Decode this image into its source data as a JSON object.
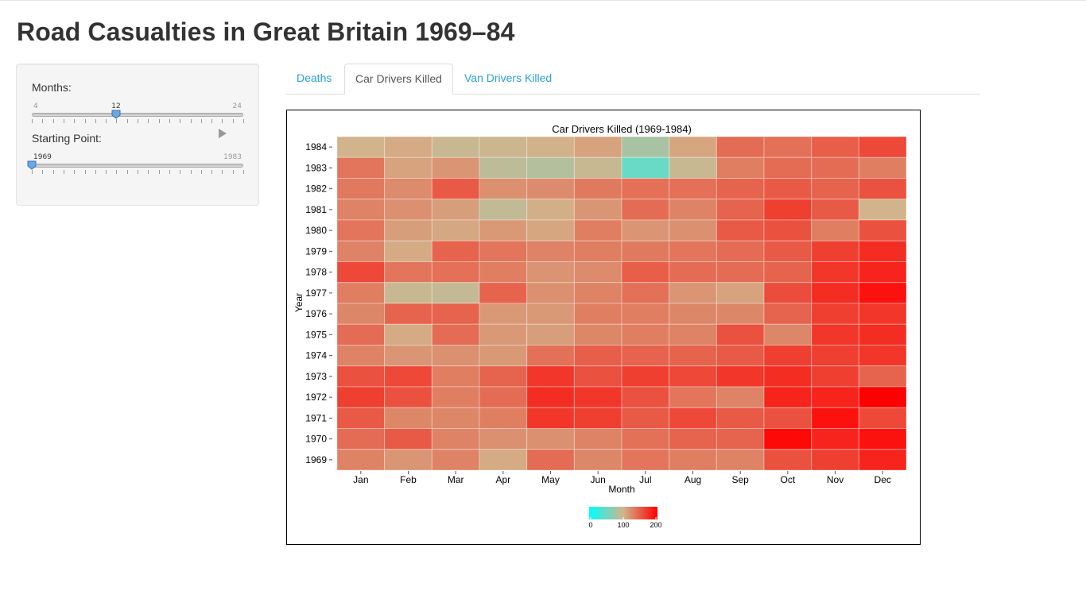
{
  "page": {
    "title": "Road Casualties in Great Britain 1969–84"
  },
  "sidebar": {
    "months_label": "Months:",
    "months_slider": {
      "min": "4",
      "max": "24",
      "value": "12"
    },
    "start_label": "Starting Point:",
    "start_slider": {
      "min": "1969",
      "max": "1983",
      "value": "1969"
    }
  },
  "tabs": [
    {
      "label": "Deaths",
      "active": false
    },
    {
      "label": "Car Drivers Killed",
      "active": true
    },
    {
      "label": "Van Drivers Killed",
      "active": false
    }
  ],
  "chart_data": {
    "type": "heatmap",
    "title": "Car Drivers Killed (1969-1984)",
    "xlabel": "Month",
    "ylabel": "Year",
    "x": [
      "Jan",
      "Feb",
      "Mar",
      "Apr",
      "May",
      "Jun",
      "Jul",
      "Aug",
      "Sep",
      "Oct",
      "Nov",
      "Dec"
    ],
    "y": [
      "1984",
      "1983",
      "1982",
      "1981",
      "1980",
      "1979",
      "1978",
      "1977",
      "1976",
      "1975",
      "1974",
      "1973",
      "1972",
      "1971",
      "1970",
      "1969"
    ],
    "values": [
      [
        100,
        105,
        95,
        97,
        101,
        110,
        80,
        108,
        140,
        138,
        148,
        160
      ],
      [
        135,
        110,
        117,
        90,
        85,
        95,
        50,
        95,
        130,
        140,
        140,
        130
      ],
      [
        133,
        123,
        150,
        120,
        123,
        132,
        138,
        138,
        145,
        150,
        145,
        155
      ],
      [
        127,
        120,
        112,
        92,
        103,
        117,
        140,
        127,
        145,
        165,
        150,
        100
      ],
      [
        135,
        112,
        107,
        115,
        108,
        130,
        117,
        120,
        150,
        155,
        130,
        155
      ],
      [
        127,
        105,
        145,
        135,
        127,
        130,
        132,
        135,
        140,
        150,
        165,
        175
      ],
      [
        160,
        135,
        138,
        130,
        118,
        123,
        148,
        140,
        140,
        145,
        170,
        180
      ],
      [
        130,
        95,
        93,
        145,
        120,
        127,
        137,
        117,
        110,
        158,
        175,
        190
      ],
      [
        125,
        145,
        145,
        115,
        115,
        130,
        130,
        125,
        125,
        145,
        165,
        170
      ],
      [
        140,
        105,
        140,
        115,
        112,
        125,
        130,
        127,
        155,
        125,
        170,
        175
      ],
      [
        127,
        117,
        120,
        115,
        137,
        147,
        145,
        145,
        150,
        165,
        165,
        170
      ],
      [
        155,
        160,
        130,
        145,
        170,
        155,
        165,
        160,
        170,
        175,
        165,
        145
      ],
      [
        165,
        155,
        130,
        140,
        175,
        170,
        155,
        135,
        127,
        180,
        180,
        205
      ],
      [
        150,
        125,
        125,
        130,
        170,
        165,
        150,
        160,
        150,
        155,
        190,
        160
      ],
      [
        140,
        150,
        127,
        120,
        120,
        127,
        137,
        145,
        145,
        195,
        180,
        190
      ],
      [
        127,
        117,
        127,
        105,
        140,
        125,
        135,
        130,
        127,
        155,
        165,
        180
      ]
    ],
    "colorscale": {
      "min": 0,
      "max": 200,
      "ticks": [
        "0",
        "100",
        "200"
      ],
      "colors": [
        "#00ffff",
        "#d2b48c",
        "#ff0000"
      ]
    },
    "grid": false
  }
}
